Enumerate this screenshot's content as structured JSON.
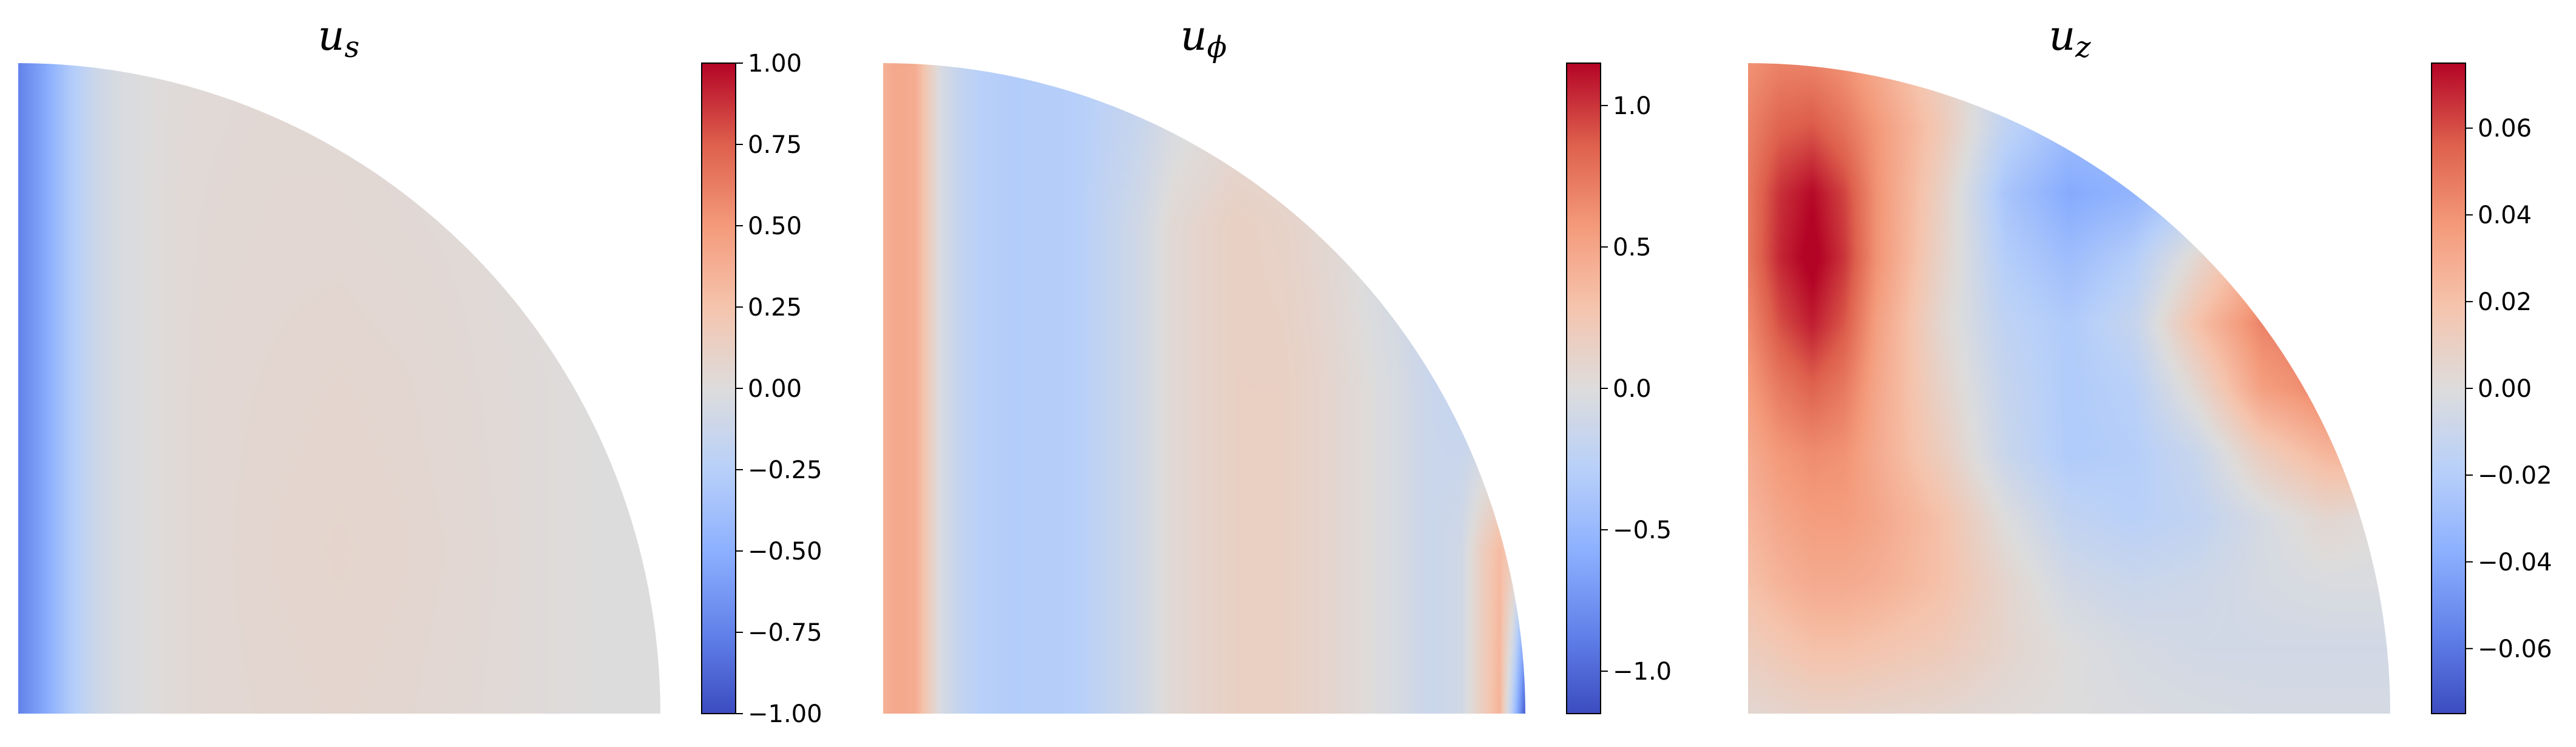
{
  "chart_data": [
    {
      "type": "heatmap",
      "title": "u",
      "title_sub": "s",
      "colormap": "coolwarm",
      "colorbar": {
        "range": [
          -1.0,
          1.0
        ],
        "ticks": [
          -1.0,
          -0.75,
          -0.5,
          -0.25,
          0.0,
          0.25,
          0.5,
          0.75,
          1.0
        ],
        "tick_labels": [
          "−1.00",
          "−0.75",
          "−0.50",
          "−0.25",
          "0.00",
          "0.25",
          "0.50",
          "0.75",
          "1.00"
        ]
      },
      "s": [
        0.0,
        0.04,
        0.08,
        0.12,
        0.16,
        0.2,
        0.25,
        0.3,
        0.4,
        0.5,
        0.6,
        0.7,
        0.8,
        0.9,
        1.0
      ],
      "z": [
        0.0,
        0.25,
        0.5,
        0.75,
        1.0
      ],
      "values": [
        [
          -0.75,
          -0.55,
          -0.3,
          -0.12,
          -0.03,
          0.0,
          0.03,
          0.05,
          0.06,
          0.07,
          0.06,
          0.04,
          0.02,
          0.0,
          0.0
        ],
        [
          -0.75,
          -0.55,
          -0.3,
          -0.12,
          -0.03,
          0.0,
          0.03,
          0.05,
          0.07,
          0.08,
          0.07,
          0.05,
          0.02,
          0.0,
          0.0
        ],
        [
          -0.75,
          -0.55,
          -0.3,
          -0.12,
          -0.03,
          0.0,
          0.03,
          0.05,
          0.06,
          0.07,
          0.06,
          0.04,
          0.02,
          0.0,
          0.0
        ],
        [
          -0.75,
          -0.55,
          -0.3,
          -0.12,
          -0.03,
          0.0,
          0.03,
          0.04,
          0.05,
          0.05,
          0.04,
          0.03,
          0.01,
          0.0,
          0.0
        ],
        [
          -0.75,
          -0.55,
          -0.3,
          -0.12,
          -0.03,
          0.0,
          0.02,
          0.03,
          0.04,
          0.04,
          0.03,
          0.02,
          0.01,
          0.0,
          0.0
        ]
      ]
    },
    {
      "type": "heatmap",
      "title": "u",
      "title_sub": "ϕ",
      "colormap": "coolwarm",
      "colorbar": {
        "range": [
          -1.15,
          1.15
        ],
        "ticks": [
          -1.0,
          -0.5,
          0.0,
          0.5,
          1.0
        ],
        "tick_labels": [
          "−1.0",
          "−0.5",
          "0.0",
          "0.5",
          "1.0"
        ]
      },
      "s": [
        0.0,
        0.02,
        0.05,
        0.07,
        0.09,
        0.12,
        0.15,
        0.2,
        0.3,
        0.4,
        0.45,
        0.55,
        0.62,
        0.7,
        0.8,
        0.85,
        0.9,
        0.93,
        0.96,
        0.98,
        1.0
      ],
      "z": [
        0.0,
        0.25,
        0.5,
        0.75,
        1.0
      ],
      "values": [
        [
          0.42,
          0.48,
          0.45,
          0.2,
          -0.05,
          -0.2,
          -0.28,
          -0.32,
          -0.3,
          -0.1,
          0.05,
          0.15,
          0.15,
          0.08,
          -0.05,
          -0.15,
          -0.1,
          0.15,
          0.4,
          -0.3,
          -1.1
        ],
        [
          0.42,
          0.48,
          0.45,
          0.2,
          -0.05,
          -0.2,
          -0.28,
          -0.32,
          -0.3,
          -0.1,
          0.05,
          0.15,
          0.15,
          0.08,
          -0.05,
          -0.15,
          -0.1,
          0.15,
          0.35,
          0.2,
          -0.2
        ],
        [
          0.42,
          0.48,
          0.45,
          0.2,
          -0.05,
          -0.2,
          -0.28,
          -0.32,
          -0.3,
          -0.1,
          0.05,
          0.15,
          0.15,
          0.08,
          -0.05,
          -0.15,
          -0.2,
          -0.25,
          -0.3,
          -0.3,
          -0.3
        ],
        [
          0.42,
          0.48,
          0.45,
          0.2,
          -0.05,
          -0.2,
          -0.28,
          -0.32,
          -0.3,
          -0.1,
          0.05,
          0.15,
          0.12,
          0.05,
          -0.1,
          -0.2,
          -0.3,
          -0.35,
          -0.35,
          -0.35,
          -0.35
        ],
        [
          0.42,
          0.48,
          0.45,
          0.2,
          -0.05,
          -0.2,
          -0.28,
          -0.32,
          -0.3,
          -0.2,
          -0.1,
          0.0,
          0.0,
          -0.1,
          -0.2,
          -0.3,
          -0.35,
          -0.35,
          -0.35,
          -0.35,
          -0.35
        ]
      ]
    },
    {
      "type": "heatmap",
      "title": "u",
      "title_sub": "z",
      "colormap": "coolwarm",
      "colorbar": {
        "range": [
          -0.075,
          0.075
        ],
        "ticks": [
          -0.06,
          -0.04,
          -0.02,
          0.0,
          0.02,
          0.04,
          0.06
        ],
        "tick_labels": [
          "−0.06",
          "−0.04",
          "−0.02",
          "0.00",
          "0.02",
          "0.04",
          "0.06"
        ]
      },
      "s": [
        0.0,
        0.05,
        0.1,
        0.15,
        0.2,
        0.3,
        0.4,
        0.5,
        0.6,
        0.7,
        0.8,
        0.9,
        1.0
      ],
      "z": [
        0.0,
        0.1,
        0.2,
        0.3,
        0.4,
        0.5,
        0.6,
        0.7,
        0.8,
        0.9,
        1.0
      ],
      "values": [
        [
          0.004,
          0.006,
          0.008,
          0.008,
          0.007,
          0.005,
          0.002,
          0.0,
          -0.002,
          -0.003,
          -0.004,
          -0.004,
          -0.004
        ],
        [
          0.012,
          0.016,
          0.02,
          0.02,
          0.018,
          0.014,
          0.006,
          0.0,
          -0.004,
          -0.006,
          -0.006,
          -0.006,
          -0.006
        ],
        [
          0.02,
          0.026,
          0.03,
          0.03,
          0.028,
          0.02,
          0.006,
          -0.006,
          -0.01,
          -0.008,
          -0.004,
          -0.002,
          -0.002
        ],
        [
          0.025,
          0.032,
          0.036,
          0.036,
          0.032,
          0.02,
          0.0,
          -0.014,
          -0.018,
          -0.014,
          -0.004,
          0.005,
          0.0
        ],
        [
          0.03,
          0.038,
          0.042,
          0.04,
          0.03,
          0.012,
          -0.01,
          -0.022,
          -0.02,
          -0.01,
          0.012,
          0.025,
          0.03
        ],
        [
          0.036,
          0.048,
          0.055,
          0.048,
          0.032,
          0.008,
          -0.012,
          -0.022,
          -0.018,
          0.005,
          0.035,
          0.045,
          0.045
        ],
        [
          0.042,
          0.06,
          0.07,
          0.058,
          0.035,
          0.005,
          -0.015,
          -0.022,
          -0.012,
          0.02,
          0.045,
          0.05,
          0.05
        ],
        [
          0.048,
          0.068,
          0.078,
          0.065,
          0.04,
          0.008,
          -0.02,
          -0.03,
          -0.02,
          0.005,
          0.03,
          0.035,
          0.035
        ],
        [
          0.048,
          0.066,
          0.074,
          0.062,
          0.04,
          0.01,
          -0.025,
          -0.04,
          -0.035,
          -0.02,
          -0.015,
          -0.015,
          -0.015
        ],
        [
          0.045,
          0.055,
          0.058,
          0.05,
          0.038,
          0.015,
          -0.015,
          -0.03,
          -0.03,
          -0.03,
          -0.03,
          -0.03,
          -0.03
        ],
        [
          0.04,
          0.045,
          0.045,
          0.04,
          0.03,
          0.01,
          -0.01,
          -0.02,
          -0.02,
          -0.02,
          -0.02,
          -0.02,
          -0.02
        ]
      ]
    }
  ]
}
